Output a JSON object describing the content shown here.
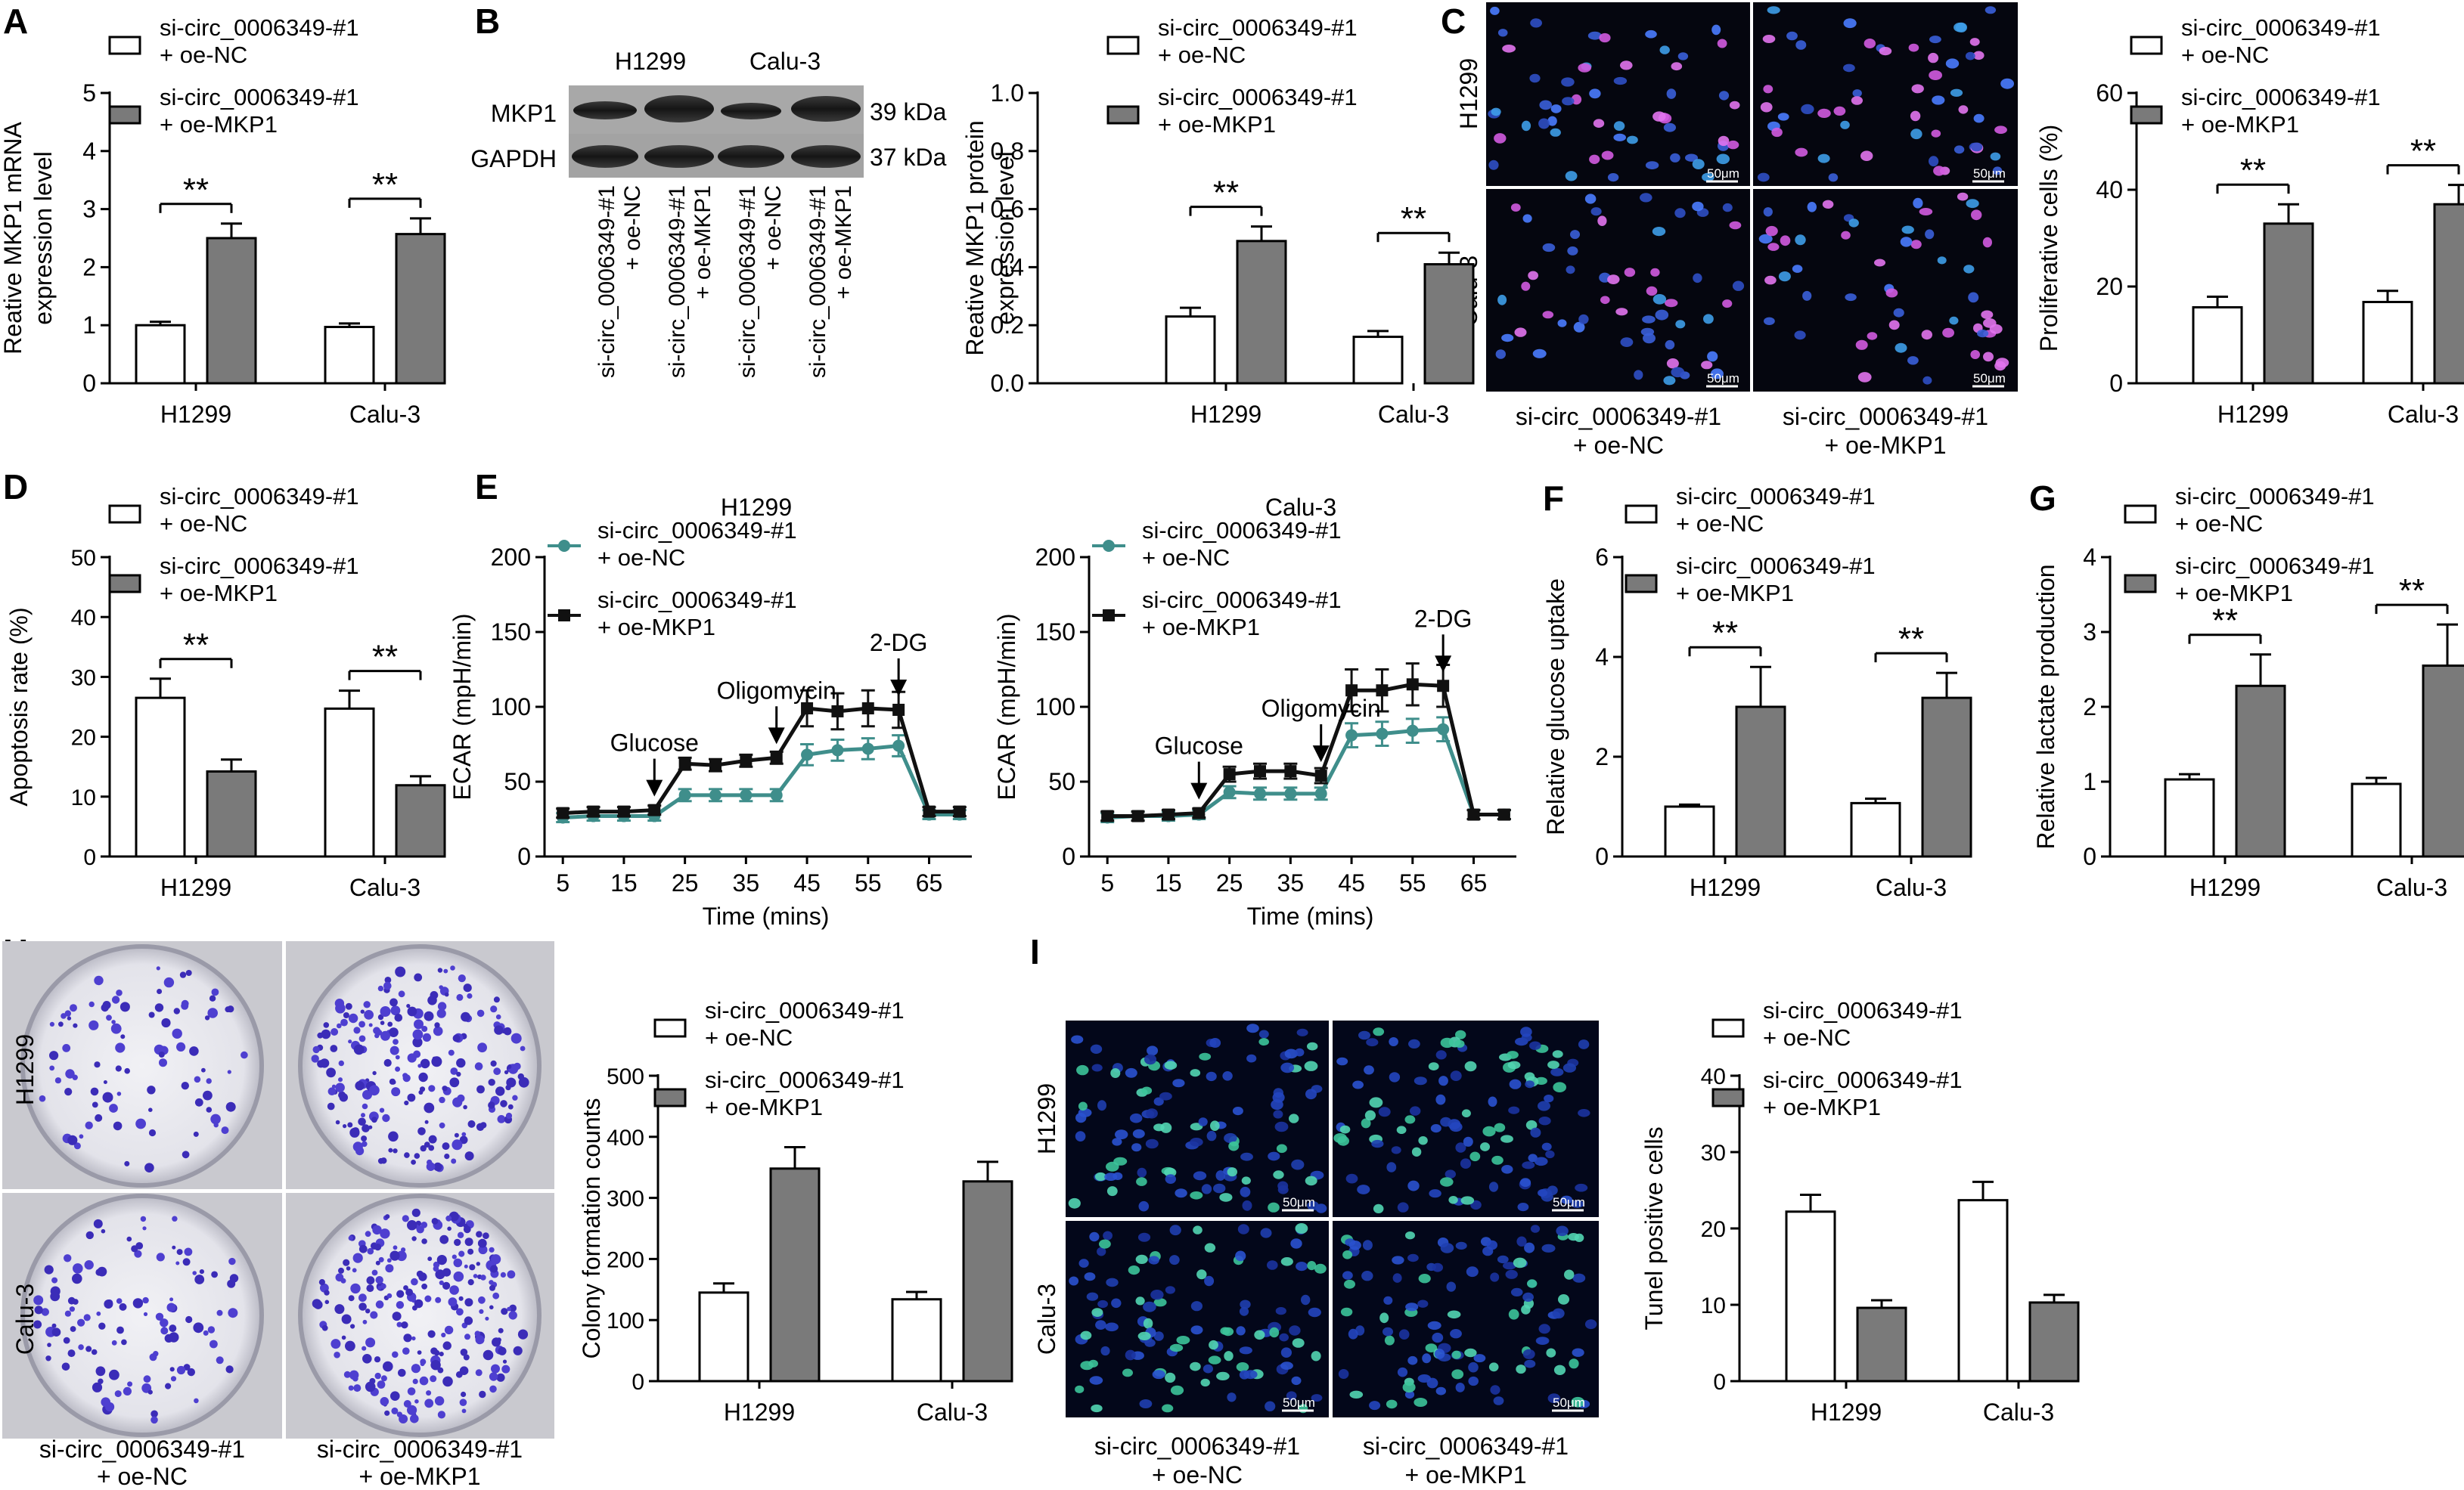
{
  "colors": {
    "white_bar": "#ffffff",
    "grey_bar": "#7a7a7a",
    "teal": "#3f8e8b",
    "black": "#111111",
    "micro_bg": "#05060f"
  },
  "legend": {
    "l1a": "si-circ_0006349-#1",
    "l1b": "+ oe-NC",
    "l2a": "si-circ_0006349-#1",
    "l2b": "+ oe-MKP1"
  },
  "sig": "**",
  "blot": {
    "cells": [
      "H1299",
      "Calu-3"
    ],
    "rows": [
      "MKP1",
      "GAPDH"
    ],
    "kda": [
      "39 kDa",
      "37 kDa"
    ],
    "lanes": [
      [
        "si-circ_0006349-#1",
        "+ oe-NC"
      ],
      [
        "si-circ_0006349-#1",
        "+ oe-MKP1"
      ],
      [
        "si-circ_0006349-#1",
        "+ oe-NC"
      ],
      [
        "si-circ_0006349-#1",
        "+ oe-MKP1"
      ]
    ]
  },
  "images": {
    "C": {
      "rows": [
        "H1299",
        "Calu-3"
      ],
      "cols": [
        [
          "si-circ_0006349-#1",
          "+ oe-NC"
        ],
        [
          "si-circ_0006349-#1",
          "+ oe-MKP1"
        ]
      ],
      "scale": "50μm"
    },
    "H": {
      "rows": [
        "H1299",
        "Calu-3"
      ],
      "cols": [
        [
          "si-circ_0006349-#1",
          "+ oe-NC"
        ],
        [
          "si-circ_0006349-#1",
          "+ oe-MKP1"
        ]
      ]
    },
    "I": {
      "rows": [
        "H1299",
        "Calu-3"
      ],
      "cols": [
        [
          "si-circ_0006349-#1",
          "+ oe-NC"
        ],
        [
          "si-circ_0006349-#1",
          "+ oe-MKP1"
        ]
      ],
      "scale": "50μm"
    }
  },
  "chart_data": [
    {
      "id": "A",
      "type": "bar",
      "panel": "A",
      "categories": [
        "H1299",
        "Calu-3"
      ],
      "series": [
        {
          "name": "si-circ_0006349-#1 + oe-NC",
          "values": [
            1.0,
            0.97
          ],
          "errors": [
            0.06,
            0.06
          ]
        },
        {
          "name": "si-circ_0006349-#1 + oe-MKP1",
          "values": [
            2.5,
            2.57
          ],
          "errors": [
            0.25,
            0.27
          ]
        }
      ],
      "ylabel": [
        "Reative MKP1 mRNA",
        "expression level"
      ],
      "ylim": [
        0,
        5
      ],
      "yticks": [
        0,
        1,
        2,
        3,
        4,
        5
      ],
      "sig": [
        true,
        true
      ]
    },
    {
      "id": "B",
      "type": "bar",
      "panel": "B",
      "categories": [
        "H1299",
        "Calu-3"
      ],
      "series": [
        {
          "name": "si-circ_0006349-#1 + oe-NC",
          "values": [
            0.23,
            0.16
          ],
          "errors": [
            0.03,
            0.02
          ]
        },
        {
          "name": "si-circ_0006349-#1 + oe-MKP1",
          "values": [
            0.49,
            0.41
          ],
          "errors": [
            0.05,
            0.04
          ]
        }
      ],
      "ylabel": [
        "Reative MKP1 protein",
        "expression level"
      ],
      "ylim": [
        0,
        1.0
      ],
      "yticks": [
        "0.0",
        "0.2",
        "0.4",
        "0.6",
        "0.8",
        "1.0"
      ],
      "sig": [
        true,
        true
      ]
    },
    {
      "id": "C",
      "type": "bar",
      "panel": "C",
      "categories": [
        "H1299",
        "Calu-3"
      ],
      "series": [
        {
          "name": "si-circ_0006349-#1 + oe-NC",
          "values": [
            15.7,
            16.8
          ],
          "errors": [
            2.2,
            2.3
          ]
        },
        {
          "name": "si-circ_0006349-#1 + oe-MKP1",
          "values": [
            33.0,
            37.0
          ],
          "errors": [
            4.0,
            4.0
          ]
        }
      ],
      "ylabel": [
        "Proliferative cells (%)"
      ],
      "ylim": [
        0,
        60
      ],
      "yticks": [
        0,
        20,
        40,
        60
      ],
      "sig": [
        true,
        true
      ]
    },
    {
      "id": "D",
      "type": "bar",
      "panel": "D",
      "categories": [
        "H1299",
        "Calu-3"
      ],
      "series": [
        {
          "name": "si-circ_0006349-#1 + oe-NC",
          "values": [
            26.5,
            24.7
          ],
          "errors": [
            3.2,
            3.0
          ]
        },
        {
          "name": "si-circ_0006349-#1 + oe-MKP1",
          "values": [
            14.2,
            11.9
          ],
          "errors": [
            2.0,
            1.5
          ]
        }
      ],
      "ylabel": [
        "Apoptosis rate (%)"
      ],
      "ylim": [
        0,
        50
      ],
      "yticks": [
        0,
        10,
        20,
        30,
        40,
        50
      ],
      "sig": [
        true,
        true
      ]
    },
    {
      "id": "E1",
      "type": "line",
      "panel": "E",
      "title": "H1299",
      "x": [
        5,
        10,
        15,
        20,
        25,
        30,
        35,
        40,
        45,
        50,
        55,
        60,
        65,
        70
      ],
      "series": [
        {
          "name": "si-circ_0006349-#1 + oe-NC",
          "values": [
            26,
            27,
            27,
            27,
            41,
            41,
            41,
            41,
            68,
            71,
            72,
            74,
            28,
            28
          ],
          "errors": [
            3,
            3,
            3,
            3,
            4,
            4,
            4,
            4,
            7,
            7,
            7,
            7,
            3,
            3
          ]
        },
        {
          "name": "si-circ_0006349-#1 + oe-MKP1",
          "values": [
            29,
            30,
            30,
            31,
            62,
            61,
            64,
            66,
            99,
            97,
            99,
            98,
            30,
            30
          ],
          "errors": [
            3,
            3,
            3,
            3,
            4,
            4,
            4,
            4,
            12,
            12,
            12,
            12,
            3,
            3
          ]
        }
      ],
      "xlabel": "Time (mins)",
      "ylabel": "ECAR (mpH/min)",
      "xlim": [
        2,
        72
      ],
      "ylim": [
        0,
        200
      ],
      "xticks": [
        5,
        15,
        25,
        35,
        45,
        55,
        65
      ],
      "yticks": [
        0,
        50,
        100,
        150,
        200
      ],
      "annotations": [
        {
          "label": "Glucose",
          "x": 20,
          "y": 31
        },
        {
          "label": "Oligomycin",
          "x": 40,
          "y": 66
        },
        {
          "label": "2-DG",
          "x": 60,
          "y": 98
        }
      ]
    },
    {
      "id": "E2",
      "type": "line",
      "panel": "E",
      "title": "Calu-3",
      "x": [
        5,
        10,
        15,
        20,
        25,
        30,
        35,
        40,
        45,
        50,
        55,
        60,
        65,
        70
      ],
      "series": [
        {
          "name": "si-circ_0006349-#1 + oe-NC",
          "values": [
            26,
            27,
            27,
            28,
            43,
            42,
            42,
            42,
            81,
            82,
            84,
            85,
            28,
            28
          ],
          "errors": [
            3,
            3,
            3,
            3,
            4,
            4,
            4,
            4,
            8,
            8,
            8,
            8,
            3,
            3
          ]
        },
        {
          "name": "si-circ_0006349-#1 + oe-MKP1",
          "values": [
            27,
            27,
            28,
            29,
            55,
            57,
            57,
            54,
            111,
            111,
            115,
            114,
            28,
            28
          ],
          "errors": [
            3,
            3,
            3,
            3,
            5,
            5,
            5,
            5,
            14,
            14,
            14,
            14,
            3,
            3
          ]
        }
      ],
      "xlabel": "Time (mins)",
      "ylabel": "ECAR (mpH/min)",
      "xlim": [
        2,
        72
      ],
      "ylim": [
        0,
        200
      ],
      "xticks": [
        5,
        15,
        25,
        35,
        45,
        55,
        65
      ],
      "yticks": [
        0,
        50,
        100,
        150,
        200
      ],
      "annotations": [
        {
          "label": "Glucose",
          "x": 20,
          "y": 29
        },
        {
          "label": "Oligomycin",
          "x": 40,
          "y": 54
        },
        {
          "label": "2-DG",
          "x": 60,
          "y": 114
        }
      ]
    },
    {
      "id": "F",
      "type": "bar",
      "panel": "F",
      "categories": [
        "H1299",
        "Calu-3"
      ],
      "series": [
        {
          "name": "si-circ_0006349-#1 + oe-NC",
          "values": [
            1.0,
            1.07
          ],
          "errors": [
            0.04,
            0.09
          ]
        },
        {
          "name": "si-circ_0006349-#1 + oe-MKP1",
          "values": [
            3.0,
            3.18
          ],
          "errors": [
            0.8,
            0.5
          ]
        }
      ],
      "ylabel": [
        "Relative glucose uptake"
      ],
      "ylim": [
        0,
        6
      ],
      "yticks": [
        0,
        2,
        4,
        6
      ],
      "sig": [
        true,
        true
      ]
    },
    {
      "id": "G",
      "type": "bar",
      "panel": "G",
      "categories": [
        "H1299",
        "Calu-3"
      ],
      "series": [
        {
          "name": "si-circ_0006349-#1 + oe-NC",
          "values": [
            1.03,
            0.97
          ],
          "errors": [
            0.07,
            0.08
          ]
        },
        {
          "name": "si-circ_0006349-#1 + oe-MKP1",
          "values": [
            2.28,
            2.55
          ],
          "errors": [
            0.42,
            0.55
          ]
        }
      ],
      "ylabel": [
        "Relative lactate production"
      ],
      "ylim": [
        0,
        4
      ],
      "yticks": [
        0,
        1,
        2,
        3,
        4
      ],
      "sig": [
        true,
        true
      ]
    },
    {
      "id": "H",
      "type": "bar",
      "panel": "H",
      "categories": [
        "H1299",
        "Calu-3"
      ],
      "series": [
        {
          "name": "si-circ_0006349-#1 + oe-NC",
          "values": [
            145,
            134
          ],
          "errors": [
            15,
            12
          ]
        },
        {
          "name": "si-circ_0006349-#1 + oe-MKP1",
          "values": [
            348,
            327
          ],
          "errors": [
            35,
            32
          ]
        }
      ],
      "ylabel": [
        "Colony formation counts"
      ],
      "ylim": [
        0,
        500
      ],
      "yticks": [
        0,
        100,
        200,
        300,
        400,
        500
      ],
      "sig": [
        false,
        false
      ]
    },
    {
      "id": "I",
      "type": "bar",
      "panel": "I",
      "categories": [
        "H1299",
        "Calu-3"
      ],
      "series": [
        {
          "name": "si-circ_0006349-#1 + oe-NC",
          "values": [
            22.2,
            23.7
          ],
          "errors": [
            2.2,
            2.4
          ]
        },
        {
          "name": "si-circ_0006349-#1 + oe-MKP1",
          "values": [
            9.6,
            10.3
          ],
          "errors": [
            1.0,
            1.0
          ]
        }
      ],
      "ylabel": [
        "Tunel positive cells"
      ],
      "ylim": [
        0,
        40
      ],
      "yticks": [
        0,
        10,
        20,
        30,
        40
      ],
      "sig": [
        false,
        false
      ]
    }
  ]
}
